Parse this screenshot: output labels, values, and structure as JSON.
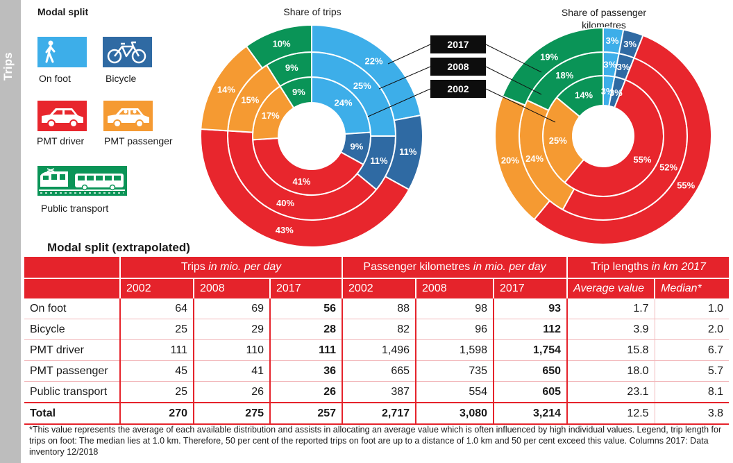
{
  "side_label": "Trips",
  "legend": {
    "title": "Modal split",
    "items": [
      {
        "label": "On foot",
        "color": "#3daee9",
        "icon": "pedestrian-icon"
      },
      {
        "label": "Bicycle",
        "color": "#2f6aa3",
        "icon": "bicycle-icon"
      },
      {
        "label": "PMT driver",
        "color": "#e8262d",
        "icon": "car-icon"
      },
      {
        "label": "PMT passenger",
        "color": "#f59a32",
        "icon": "car-passenger-icon"
      },
      {
        "label": "Public transport",
        "color": "#0a9457",
        "icon": "train-bus-icon"
      }
    ]
  },
  "years": [
    "2017",
    "2008",
    "2002"
  ],
  "chart_data": [
    {
      "type": "pie",
      "title": "Share of trips",
      "categories": [
        "On foot",
        "Bicycle",
        "PMT driver",
        "PMT passenger",
        "Public transport"
      ],
      "colors": [
        "#3daee9",
        "#2f6aa3",
        "#e8262d",
        "#f59a32",
        "#0a9457"
      ],
      "rings": [
        {
          "name": "2002",
          "values": [
            24,
            9,
            41,
            17,
            9
          ]
        },
        {
          "name": "2008",
          "values": [
            25,
            11,
            40,
            15,
            9
          ]
        },
        {
          "name": "2017",
          "values": [
            22,
            11,
            43,
            14,
            10
          ]
        }
      ]
    },
    {
      "type": "pie",
      "title": "Share of passenger kilometres",
      "categories": [
        "On foot",
        "Bicycle",
        "PMT driver",
        "PMT passenger",
        "Public transport"
      ],
      "colors": [
        "#3daee9",
        "#2f6aa3",
        "#e8262d",
        "#f59a32",
        "#0a9457"
      ],
      "rings": [
        {
          "name": "2002",
          "values": [
            3,
            3,
            55,
            25,
            14
          ]
        },
        {
          "name": "2008",
          "values": [
            3,
            3,
            52,
            24,
            18
          ]
        },
        {
          "name": "2017",
          "values": [
            3,
            3,
            55,
            20,
            19
          ]
        }
      ]
    }
  ],
  "table": {
    "title": "Modal split (extrapolated)",
    "groups": [
      {
        "label": "Trips",
        "unit": " in mio. per day"
      },
      {
        "label": "Passenger kilometres",
        "unit": " in mio. per day"
      },
      {
        "label": "Trip lengths",
        "unit": " in km 2017"
      }
    ],
    "subheaders": [
      "2002",
      "2008",
      "2017",
      "2002",
      "2008",
      "2017",
      "Average value",
      "Median*"
    ],
    "rows": [
      {
        "label": "On foot",
        "cells": [
          "64",
          "69",
          "56",
          "88",
          "98",
          "93",
          "1.7",
          "1.0"
        ]
      },
      {
        "label": "Bicycle",
        "cells": [
          "25",
          "29",
          "28",
          "82",
          "96",
          "112",
          "3.9",
          "2.0"
        ]
      },
      {
        "label": "PMT driver",
        "cells": [
          "111",
          "110",
          "111",
          "1,496",
          "1,598",
          "1,754",
          "15.8",
          "6.7"
        ]
      },
      {
        "label": "PMT passenger",
        "cells": [
          "45",
          "41",
          "36",
          "665",
          "735",
          "650",
          "18.0",
          "5.7"
        ]
      },
      {
        "label": "Public transport",
        "cells": [
          "25",
          "26",
          "26",
          "387",
          "554",
          "605",
          "23.1",
          "8.1"
        ]
      },
      {
        "label": "Total",
        "cells": [
          "270",
          "275",
          "257",
          "2,717",
          "3,080",
          "3,214",
          "12.5",
          "3.8"
        ]
      }
    ]
  },
  "footnote": "*This value represents the average of each available distribution and assists in allocating an average value which is often influenced by high individual values. Legend, trip length for trips on foot: The median lies at 1.0 km. Therefore, 50 per cent of the reported trips on foot are up to a distance of 1.0 km and 50 per cent exceed this value. Columns 2017: Data inventory 12/2018"
}
